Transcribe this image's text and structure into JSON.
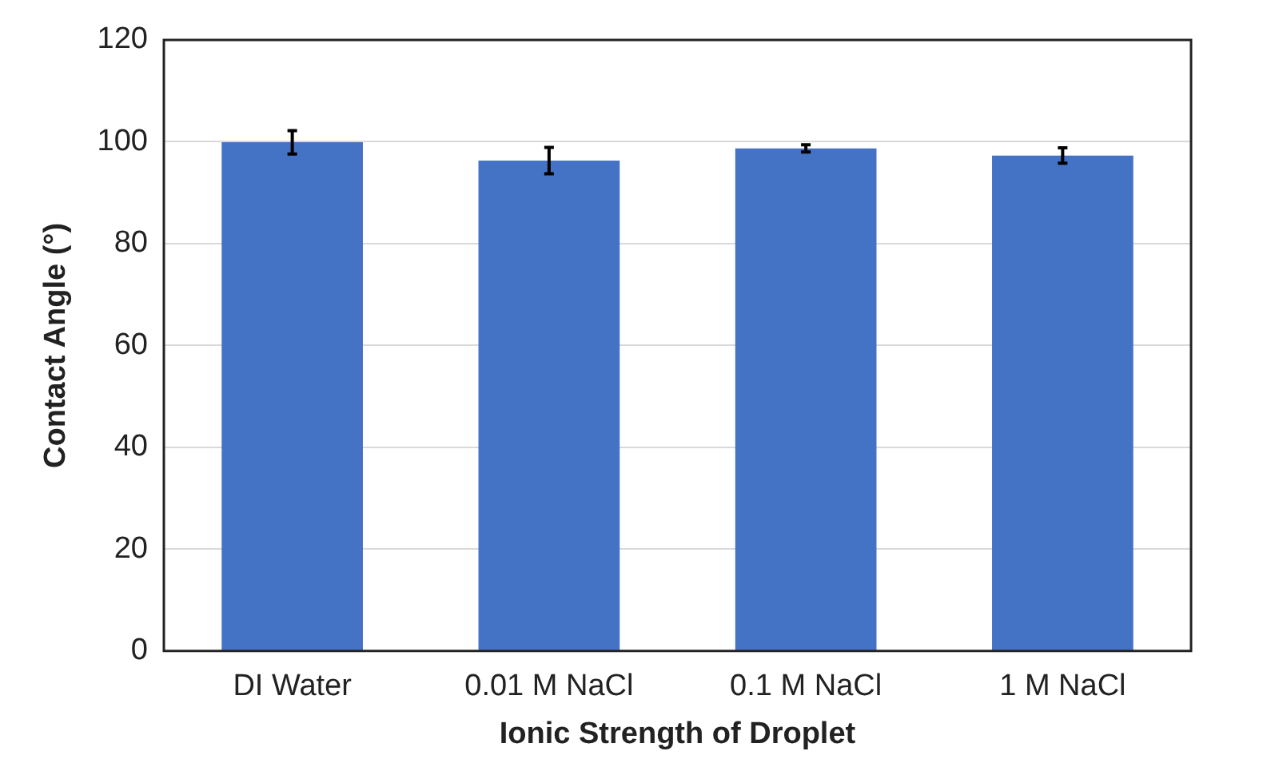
{
  "chart_data": {
    "type": "bar",
    "xlabel": "Ionic Strength of Droplet",
    "ylabel": "Contact Angle (°)",
    "categories": [
      "DI Water",
      "0.01 M NaCl",
      "0.1 M NaCl",
      "1 M NaCl"
    ],
    "values": [
      99.9,
      96.3,
      98.7,
      97.3
    ],
    "errors": [
      2.3,
      2.6,
      0.7,
      1.5
    ],
    "color": "#4472c4",
    "ylim": [
      0,
      120
    ],
    "yticks": [
      0,
      20,
      40,
      60,
      80,
      100,
      120
    ],
    "grid": "y",
    "legend": false
  }
}
